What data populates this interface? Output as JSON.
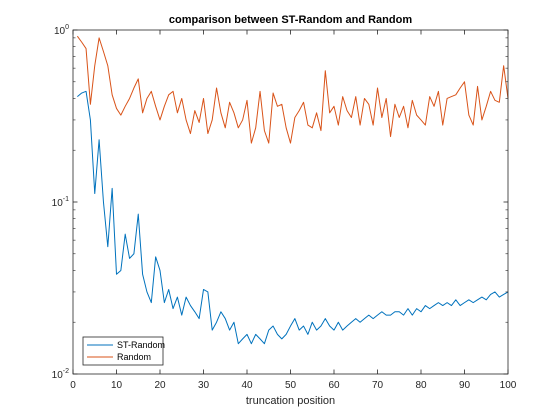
{
  "chart_data": {
    "type": "line",
    "title": "comparison between ST-Random and Random",
    "xlabel": "truncation position",
    "ylabel": "",
    "xlim": [
      0,
      100
    ],
    "ylim": [
      0.01,
      1
    ],
    "yscale": "log",
    "x_ticks": [
      0,
      10,
      20,
      30,
      40,
      50,
      60,
      70,
      80,
      90,
      100
    ],
    "y_ticks": [
      {
        "value": 0.01,
        "base": "10",
        "exp": "-2"
      },
      {
        "value": 0.1,
        "base": "10",
        "exp": "-1"
      },
      {
        "value": 1,
        "base": "10",
        "exp": "0"
      }
    ],
    "grid": false,
    "legend_position": "bottom-left",
    "x": [
      1,
      2,
      3,
      4,
      5,
      6,
      7,
      8,
      9,
      10,
      11,
      12,
      13,
      14,
      15,
      16,
      17,
      18,
      19,
      20,
      21,
      22,
      23,
      24,
      25,
      26,
      27,
      28,
      29,
      30,
      31,
      32,
      33,
      34,
      35,
      36,
      37,
      38,
      39,
      40,
      41,
      42,
      43,
      44,
      45,
      46,
      47,
      48,
      49,
      50,
      51,
      52,
      53,
      54,
      55,
      56,
      57,
      58,
      59,
      60,
      61,
      62,
      63,
      64,
      65,
      66,
      67,
      68,
      69,
      70,
      71,
      72,
      73,
      74,
      75,
      76,
      77,
      78,
      79,
      80,
      81,
      82,
      83,
      84,
      85,
      86,
      87,
      88,
      89,
      90,
      91,
      92,
      93,
      94,
      95,
      96,
      97,
      98,
      99,
      100
    ],
    "series": [
      {
        "name": "ST-Random",
        "color": "#0072BD",
        "values": [
          0.41,
          0.43,
          0.44,
          0.3,
          0.112,
          0.23,
          0.1,
          0.055,
          0.12,
          0.038,
          0.04,
          0.065,
          0.047,
          0.05,
          0.085,
          0.038,
          0.03,
          0.026,
          0.048,
          0.04,
          0.026,
          0.031,
          0.024,
          0.028,
          0.022,
          0.028,
          0.025,
          0.023,
          0.021,
          0.031,
          0.03,
          0.018,
          0.02,
          0.023,
          0.021,
          0.018,
          0.02,
          0.015,
          0.016,
          0.017,
          0.015,
          0.017,
          0.016,
          0.015,
          0.018,
          0.019,
          0.017,
          0.016,
          0.017,
          0.019,
          0.021,
          0.018,
          0.019,
          0.017,
          0.02,
          0.018,
          0.019,
          0.021,
          0.019,
          0.018,
          0.02,
          0.018,
          0.019,
          0.02,
          0.021,
          0.02,
          0.021,
          0.022,
          0.021,
          0.022,
          0.023,
          0.022,
          0.022,
          0.023,
          0.023,
          0.022,
          0.024,
          0.022,
          0.024,
          0.023,
          0.025,
          0.024,
          0.025,
          0.026,
          0.025,
          0.026,
          0.025,
          0.027,
          0.025,
          0.026,
          0.027,
          0.026,
          0.027,
          0.028,
          0.027,
          0.029,
          0.03,
          0.028,
          0.029,
          0.03
        ]
      },
      {
        "name": "Random",
        "color": "#D95319",
        "values": [
          0.92,
          0.85,
          0.78,
          0.37,
          0.62,
          0.9,
          0.75,
          0.62,
          0.42,
          0.35,
          0.32,
          0.36,
          0.4,
          0.46,
          0.52,
          0.33,
          0.4,
          0.44,
          0.36,
          0.3,
          0.36,
          0.42,
          0.44,
          0.33,
          0.4,
          0.3,
          0.25,
          0.34,
          0.29,
          0.4,
          0.25,
          0.3,
          0.46,
          0.33,
          0.27,
          0.38,
          0.33,
          0.27,
          0.3,
          0.39,
          0.22,
          0.27,
          0.44,
          0.26,
          0.22,
          0.43,
          0.36,
          0.37,
          0.27,
          0.22,
          0.31,
          0.34,
          0.38,
          0.28,
          0.27,
          0.33,
          0.26,
          0.58,
          0.33,
          0.36,
          0.28,
          0.41,
          0.34,
          0.31,
          0.41,
          0.28,
          0.4,
          0.37,
          0.28,
          0.46,
          0.31,
          0.4,
          0.24,
          0.37,
          0.31,
          0.36,
          0.27,
          0.39,
          0.32,
          0.3,
          0.28,
          0.41,
          0.36,
          0.44,
          0.28,
          0.4,
          0.41,
          0.42,
          0.46,
          0.5,
          0.32,
          0.28,
          0.47,
          0.3,
          0.36,
          0.44,
          0.39,
          0.38,
          0.62,
          0.4
        ]
      }
    ]
  }
}
